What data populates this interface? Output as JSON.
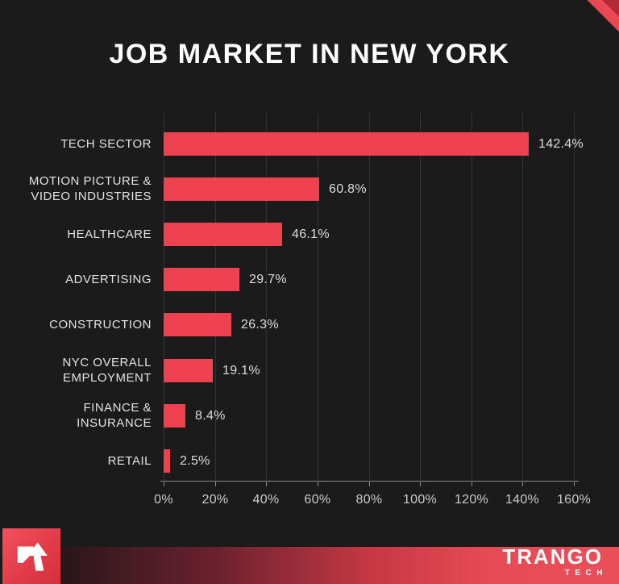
{
  "page": {
    "title": "JOB MARKET IN NEW YORK"
  },
  "chart_data": {
    "type": "bar",
    "orientation": "horizontal",
    "title": "JOB MARKET IN NEW YORK",
    "categories": [
      "TECH SECTOR",
      "MOTION PICTURE &\nVIDEO INDUSTRIES",
      "HEALTHCARE",
      "ADVERTISING",
      "CONSTRUCTION",
      "NYC OVERALL\nEMPLOYMENT",
      "FINANCE &\nINSURANCE",
      "RETAIL"
    ],
    "values": [
      142.4,
      60.8,
      46.1,
      29.7,
      26.3,
      19.1,
      8.4,
      2.5
    ],
    "value_labels": [
      "142.4%",
      "60.8%",
      "46.1%",
      "29.7%",
      "26.3%",
      "19.1%",
      "8.4%",
      "2.5%"
    ],
    "xlabel": "",
    "ylabel": "",
    "xlim": [
      0,
      160
    ],
    "x_tick_step": 20,
    "x_tick_labels": [
      "0%",
      "20%",
      "40%",
      "60%",
      "80%",
      "100%",
      "120%",
      "140%",
      "160%"
    ],
    "grid": true,
    "legend": false,
    "bar_color": "#ee4250",
    "background_color": "#1b1b1b",
    "gridline_color": "#323234",
    "text_color": "#e2e2e2"
  },
  "footer": {
    "brand_name": "TRANGO",
    "brand_sub": "TECH",
    "logo_icon": "arrow-up-icon"
  },
  "decor": {
    "corner_accent_color": "#e8434e"
  }
}
